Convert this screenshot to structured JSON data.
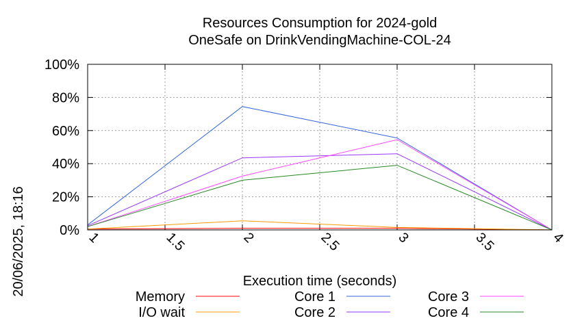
{
  "chart_data": {
    "type": "line",
    "title": "Resources Consumption for 2024-gold",
    "subtitle": "OneSafe on DrinkVendingMachine-COL-24",
    "xlabel": "Execution time (seconds)",
    "ylabel": "",
    "timestamp": "20/06/2025, 18:16",
    "xlim": [
      1,
      4
    ],
    "ylim": [
      0,
      100
    ],
    "xticks": [
      1,
      1.5,
      2,
      2.5,
      3,
      3.5,
      4
    ],
    "xtick_labels": [
      "1",
      "1.5",
      "2",
      "2.5",
      "3",
      "3.5",
      "4"
    ],
    "yticks": [
      0,
      20,
      40,
      60,
      80,
      100
    ],
    "ytick_labels": [
      "0%",
      "20%",
      "40%",
      "60%",
      "80%",
      "100%"
    ],
    "grid": true,
    "legend_position": "bottom",
    "series": [
      {
        "name": "Memory",
        "color": "#ff0000",
        "x": [
          1,
          2,
          3,
          4
        ],
        "y": [
          0.5,
          1,
          1,
          0
        ]
      },
      {
        "name": "I/O wait",
        "color": "#ff9900",
        "x": [
          1,
          2,
          3,
          4
        ],
        "y": [
          0.5,
          5.5,
          1.5,
          0
        ]
      },
      {
        "name": "Core 1",
        "color": "#3366dd",
        "x": [
          1,
          2,
          3,
          4
        ],
        "y": [
          3,
          74.5,
          55.5,
          0
        ]
      },
      {
        "name": "Core 2",
        "color": "#9933ff",
        "x": [
          1,
          2,
          3,
          4
        ],
        "y": [
          2.5,
          43.5,
          46,
          0
        ]
      },
      {
        "name": "Core 3",
        "color": "#ff44ff",
        "x": [
          1,
          2,
          3,
          4
        ],
        "y": [
          2,
          32.5,
          54.5,
          0
        ]
      },
      {
        "name": "Core 4",
        "color": "#228822",
        "x": [
          1,
          2,
          3,
          4
        ],
        "y": [
          2,
          30,
          39,
          0
        ]
      }
    ]
  }
}
